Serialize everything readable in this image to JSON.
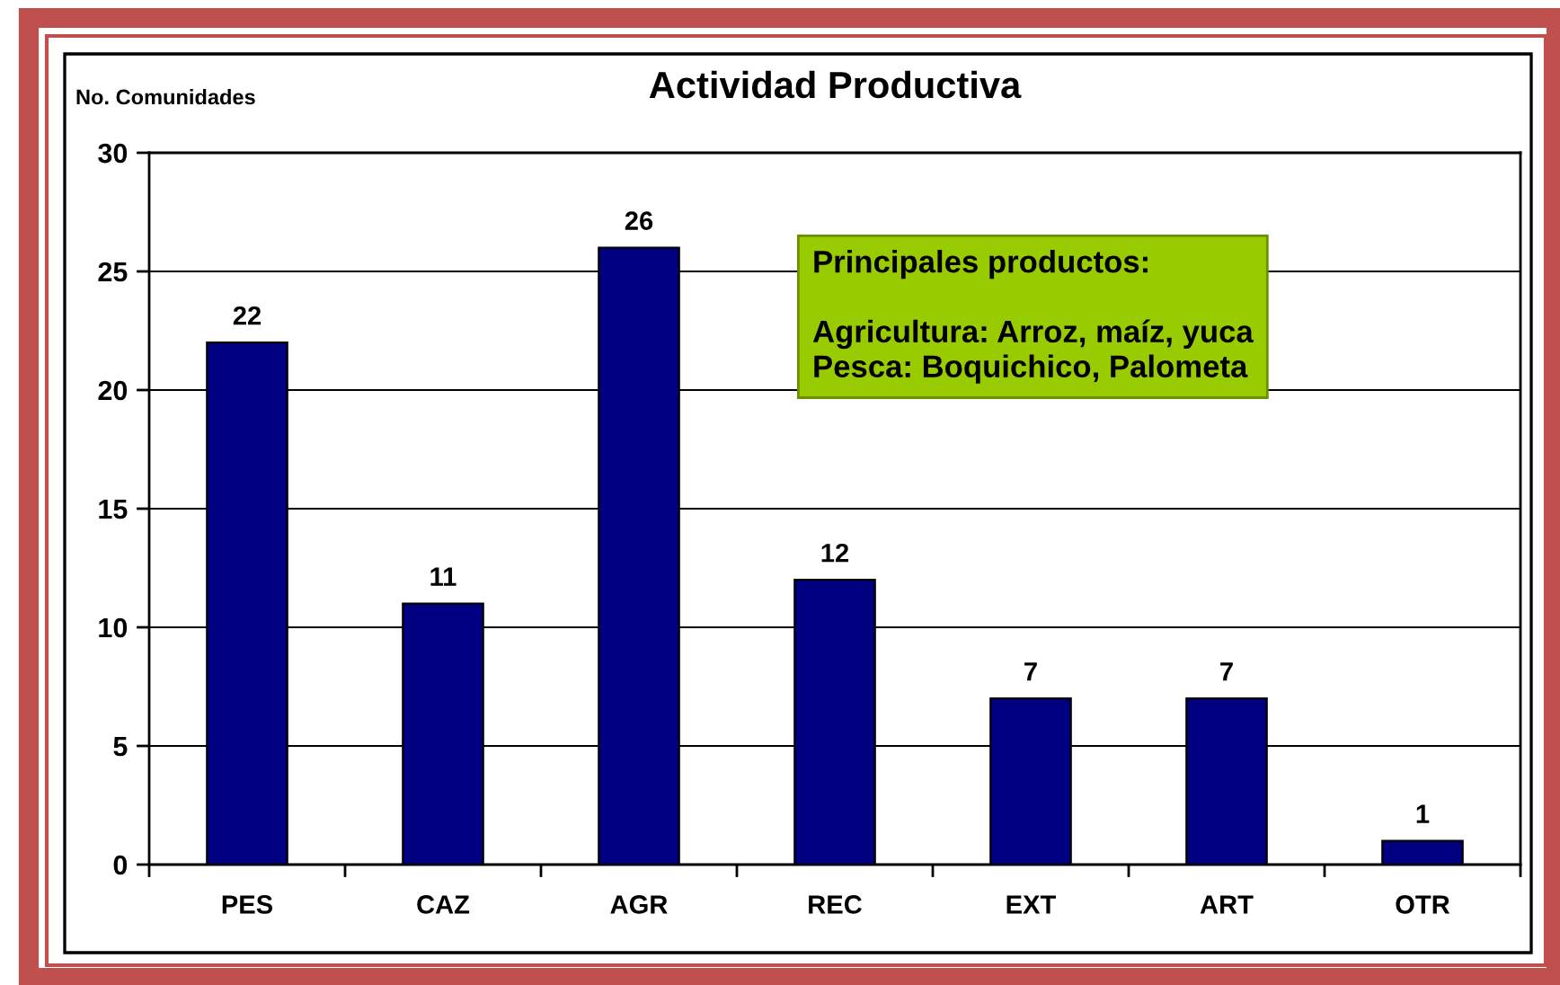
{
  "chart_data": {
    "type": "bar",
    "title": "Actividad Productiva",
    "ylabel": "No. Comunidades",
    "categories": [
      "PES",
      "CAZ",
      "AGR",
      "REC",
      "EXT",
      "ART",
      "OTR"
    ],
    "values": [
      22,
      11,
      26,
      12,
      7,
      7,
      1
    ],
    "color": "#000080",
    "ylim": [
      0,
      30
    ],
    "yticks": [
      0,
      5,
      10,
      15,
      20,
      25,
      30
    ],
    "grid": "y",
    "legend": false,
    "data_labels": true,
    "annotations": [
      "Principales productos:\n\nAgricultura: Arroz, maíz, yuca\nPesca: Boquichico, Palometa"
    ]
  }
}
